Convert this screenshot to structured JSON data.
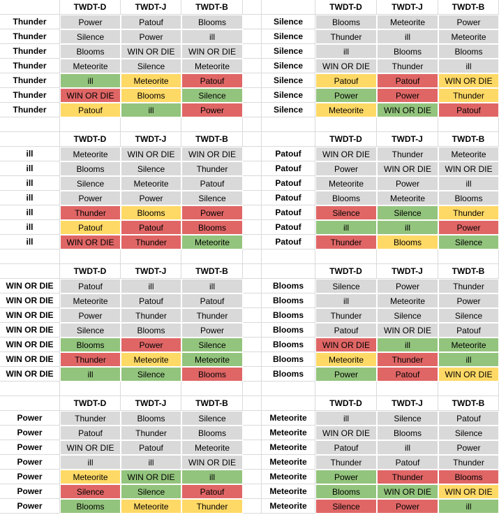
{
  "colors": {
    "gray": "#d9d9d9",
    "green": "#93c47d",
    "yellow": "#ffd966",
    "red": "#e06666",
    "gridline": "#dadada"
  },
  "column_headers": [
    "TWDT-D",
    "TWDT-J",
    "TWDT-B"
  ],
  "tables": [
    {
      "label": "Thunder",
      "rows": [
        [
          {
            "text": "Power",
            "color": "gray"
          },
          {
            "text": "Patouf",
            "color": "gray"
          },
          {
            "text": "Blooms",
            "color": "gray"
          }
        ],
        [
          {
            "text": "Silence",
            "color": "gray"
          },
          {
            "text": "Power",
            "color": "gray"
          },
          {
            "text": "ill",
            "color": "gray"
          }
        ],
        [
          {
            "text": "Blooms",
            "color": "gray"
          },
          {
            "text": "WIN OR DIE",
            "color": "gray"
          },
          {
            "text": "WIN OR DIE",
            "color": "gray"
          }
        ],
        [
          {
            "text": "Meteorite",
            "color": "gray"
          },
          {
            "text": "Silence",
            "color": "gray"
          },
          {
            "text": "Meteorite",
            "color": "gray"
          }
        ],
        [
          {
            "text": "ill",
            "color": "green"
          },
          {
            "text": "Meteorite",
            "color": "yellow"
          },
          {
            "text": "Patouf",
            "color": "red"
          }
        ],
        [
          {
            "text": "WIN OR DIE",
            "color": "red"
          },
          {
            "text": "Blooms",
            "color": "yellow"
          },
          {
            "text": "Silence",
            "color": "green"
          }
        ],
        [
          {
            "text": "Patouf",
            "color": "yellow"
          },
          {
            "text": "ill",
            "color": "green"
          },
          {
            "text": "Power",
            "color": "red"
          }
        ]
      ]
    },
    {
      "label": "Silence",
      "rows": [
        [
          {
            "text": "Blooms",
            "color": "gray"
          },
          {
            "text": "Meteorite",
            "color": "gray"
          },
          {
            "text": "Power",
            "color": "gray"
          }
        ],
        [
          {
            "text": "Thunder",
            "color": "gray"
          },
          {
            "text": "ill",
            "color": "gray"
          },
          {
            "text": "Meteorite",
            "color": "gray"
          }
        ],
        [
          {
            "text": "ill",
            "color": "gray"
          },
          {
            "text": "Blooms",
            "color": "gray"
          },
          {
            "text": "Blooms",
            "color": "gray"
          }
        ],
        [
          {
            "text": "WIN OR DIE",
            "color": "gray"
          },
          {
            "text": "Thunder",
            "color": "gray"
          },
          {
            "text": "ill",
            "color": "gray"
          }
        ],
        [
          {
            "text": "Patouf",
            "color": "yellow"
          },
          {
            "text": "Patouf",
            "color": "red"
          },
          {
            "text": "WIN OR DIE",
            "color": "yellow"
          }
        ],
        [
          {
            "text": "Power",
            "color": "green"
          },
          {
            "text": "Power",
            "color": "red"
          },
          {
            "text": "Thunder",
            "color": "yellow"
          }
        ],
        [
          {
            "text": "Meteorite",
            "color": "yellow"
          },
          {
            "text": "WIN OR DIE",
            "color": "green"
          },
          {
            "text": "Patouf",
            "color": "red"
          }
        ]
      ]
    },
    {
      "label": "ill",
      "rows": [
        [
          {
            "text": "Meteorite",
            "color": "gray"
          },
          {
            "text": "WIN OR DIE",
            "color": "gray"
          },
          {
            "text": "WIN OR DIE",
            "color": "gray"
          }
        ],
        [
          {
            "text": "Blooms",
            "color": "gray"
          },
          {
            "text": "Silence",
            "color": "gray"
          },
          {
            "text": "Thunder",
            "color": "gray"
          }
        ],
        [
          {
            "text": "Silence",
            "color": "gray"
          },
          {
            "text": "Meteorite",
            "color": "gray"
          },
          {
            "text": "Patouf",
            "color": "gray"
          }
        ],
        [
          {
            "text": "Power",
            "color": "gray"
          },
          {
            "text": "Power",
            "color": "gray"
          },
          {
            "text": "Silence",
            "color": "gray"
          }
        ],
        [
          {
            "text": "Thunder",
            "color": "red"
          },
          {
            "text": "Blooms",
            "color": "yellow"
          },
          {
            "text": "Power",
            "color": "red"
          }
        ],
        [
          {
            "text": "Patouf",
            "color": "yellow"
          },
          {
            "text": "Patouf",
            "color": "red"
          },
          {
            "text": "Blooms",
            "color": "red"
          }
        ],
        [
          {
            "text": "WIN OR DIE",
            "color": "red"
          },
          {
            "text": "Thunder",
            "color": "red"
          },
          {
            "text": "Meteorite",
            "color": "green"
          }
        ]
      ]
    },
    {
      "label": "Patouf",
      "rows": [
        [
          {
            "text": "WIN OR DIE",
            "color": "gray"
          },
          {
            "text": "Thunder",
            "color": "gray"
          },
          {
            "text": "Meteorite",
            "color": "gray"
          }
        ],
        [
          {
            "text": "Power",
            "color": "gray"
          },
          {
            "text": "WIN OR DIE",
            "color": "gray"
          },
          {
            "text": "WIN OR DIE",
            "color": "gray"
          }
        ],
        [
          {
            "text": "Meteorite",
            "color": "gray"
          },
          {
            "text": "Power",
            "color": "gray"
          },
          {
            "text": "ill",
            "color": "gray"
          }
        ],
        [
          {
            "text": "Blooms",
            "color": "gray"
          },
          {
            "text": "Meteorite",
            "color": "gray"
          },
          {
            "text": "Blooms",
            "color": "gray"
          }
        ],
        [
          {
            "text": "Silence",
            "color": "red"
          },
          {
            "text": "Silence",
            "color": "green"
          },
          {
            "text": "Thunder",
            "color": "yellow"
          }
        ],
        [
          {
            "text": "ill",
            "color": "green"
          },
          {
            "text": "ill",
            "color": "green"
          },
          {
            "text": "Power",
            "color": "red"
          }
        ],
        [
          {
            "text": "Thunder",
            "color": "red"
          },
          {
            "text": "Blooms",
            "color": "yellow"
          },
          {
            "text": "Silence",
            "color": "green"
          }
        ]
      ]
    },
    {
      "label": "WIN OR DIE",
      "rows": [
        [
          {
            "text": "Patouf",
            "color": "gray"
          },
          {
            "text": "ill",
            "color": "gray"
          },
          {
            "text": "ill",
            "color": "gray"
          }
        ],
        [
          {
            "text": "Meteorite",
            "color": "gray"
          },
          {
            "text": "Patouf",
            "color": "gray"
          },
          {
            "text": "Patouf",
            "color": "gray"
          }
        ],
        [
          {
            "text": "Power",
            "color": "gray"
          },
          {
            "text": "Thunder",
            "color": "gray"
          },
          {
            "text": "Thunder",
            "color": "gray"
          }
        ],
        [
          {
            "text": "Silence",
            "color": "gray"
          },
          {
            "text": "Blooms",
            "color": "gray"
          },
          {
            "text": "Power",
            "color": "gray"
          }
        ],
        [
          {
            "text": "Blooms",
            "color": "green"
          },
          {
            "text": "Power",
            "color": "red"
          },
          {
            "text": "Silence",
            "color": "green"
          }
        ],
        [
          {
            "text": "Thunder",
            "color": "red"
          },
          {
            "text": "Meteorite",
            "color": "yellow"
          },
          {
            "text": "Meteorite",
            "color": "green"
          }
        ],
        [
          {
            "text": "ill",
            "color": "green"
          },
          {
            "text": "Silence",
            "color": "green"
          },
          {
            "text": "Blooms",
            "color": "red"
          }
        ]
      ]
    },
    {
      "label": "Blooms",
      "rows": [
        [
          {
            "text": "Silence",
            "color": "gray"
          },
          {
            "text": "Power",
            "color": "gray"
          },
          {
            "text": "Thunder",
            "color": "gray"
          }
        ],
        [
          {
            "text": "ill",
            "color": "gray"
          },
          {
            "text": "Meteorite",
            "color": "gray"
          },
          {
            "text": "Power",
            "color": "gray"
          }
        ],
        [
          {
            "text": "Thunder",
            "color": "gray"
          },
          {
            "text": "Silence",
            "color": "gray"
          },
          {
            "text": "Silence",
            "color": "gray"
          }
        ],
        [
          {
            "text": "Patouf",
            "color": "gray"
          },
          {
            "text": "WIN OR DIE",
            "color": "gray"
          },
          {
            "text": "Patouf",
            "color": "gray"
          }
        ],
        [
          {
            "text": "WIN OR DIE",
            "color": "red"
          },
          {
            "text": "ill",
            "color": "green"
          },
          {
            "text": "Meteorite",
            "color": "green"
          }
        ],
        [
          {
            "text": "Meteorite",
            "color": "yellow"
          },
          {
            "text": "Thunder",
            "color": "red"
          },
          {
            "text": "ill",
            "color": "green"
          }
        ],
        [
          {
            "text": "Power",
            "color": "green"
          },
          {
            "text": "Patouf",
            "color": "red"
          },
          {
            "text": "WIN OR DIE",
            "color": "yellow"
          }
        ]
      ]
    },
    {
      "label": "Power",
      "rows": [
        [
          {
            "text": "Thunder",
            "color": "gray"
          },
          {
            "text": "Blooms",
            "color": "gray"
          },
          {
            "text": "Silence",
            "color": "gray"
          }
        ],
        [
          {
            "text": "Patouf",
            "color": "gray"
          },
          {
            "text": "Thunder",
            "color": "gray"
          },
          {
            "text": "Blooms",
            "color": "gray"
          }
        ],
        [
          {
            "text": "WIN OR DIE",
            "color": "gray"
          },
          {
            "text": "Patouf",
            "color": "gray"
          },
          {
            "text": "Meteorite",
            "color": "gray"
          }
        ],
        [
          {
            "text": "ill",
            "color": "gray"
          },
          {
            "text": "ill",
            "color": "gray"
          },
          {
            "text": "WIN OR DIE",
            "color": "gray"
          }
        ],
        [
          {
            "text": "Meteorite",
            "color": "yellow"
          },
          {
            "text": "WIN OR DIE",
            "color": "green"
          },
          {
            "text": "ill",
            "color": "green"
          }
        ],
        [
          {
            "text": "Silence",
            "color": "red"
          },
          {
            "text": "Silence",
            "color": "green"
          },
          {
            "text": "Patouf",
            "color": "red"
          }
        ],
        [
          {
            "text": "Blooms",
            "color": "green"
          },
          {
            "text": "Meteorite",
            "color": "yellow"
          },
          {
            "text": "Thunder",
            "color": "yellow"
          }
        ]
      ]
    },
    {
      "label": "Meteorite",
      "rows": [
        [
          {
            "text": "ill",
            "color": "gray"
          },
          {
            "text": "Silence",
            "color": "gray"
          },
          {
            "text": "Patouf",
            "color": "gray"
          }
        ],
        [
          {
            "text": "WIN OR DIE",
            "color": "gray"
          },
          {
            "text": "Blooms",
            "color": "gray"
          },
          {
            "text": "Silence",
            "color": "gray"
          }
        ],
        [
          {
            "text": "Patouf",
            "color": "gray"
          },
          {
            "text": "ill",
            "color": "gray"
          },
          {
            "text": "Power",
            "color": "gray"
          }
        ],
        [
          {
            "text": "Thunder",
            "color": "gray"
          },
          {
            "text": "Patouf",
            "color": "gray"
          },
          {
            "text": "Thunder",
            "color": "gray"
          }
        ],
        [
          {
            "text": "Power",
            "color": "green"
          },
          {
            "text": "Thunder",
            "color": "red"
          },
          {
            "text": "Blooms",
            "color": "red"
          }
        ],
        [
          {
            "text": "Blooms",
            "color": "green"
          },
          {
            "text": "WIN OR DIE",
            "color": "green"
          },
          {
            "text": "WIN OR DIE",
            "color": "yellow"
          }
        ],
        [
          {
            "text": "Silence",
            "color": "red"
          },
          {
            "text": "Power",
            "color": "red"
          },
          {
            "text": "ill",
            "color": "green"
          }
        ]
      ]
    }
  ]
}
